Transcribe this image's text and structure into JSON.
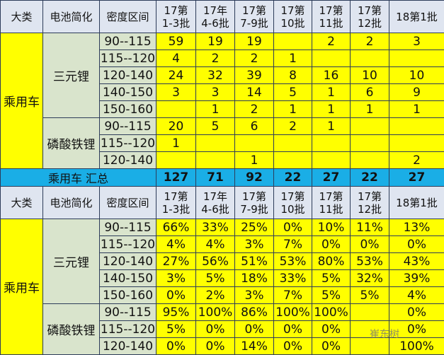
{
  "headers": {
    "category": "大类",
    "battery": "电池简化",
    "density": "密度区间",
    "batches": [
      [
        "17第",
        "1-3批"
      ],
      [
        "17年",
        "4-6批"
      ],
      [
        "17第",
        "7-9批"
      ],
      [
        "17第",
        "10批"
      ],
      [
        "17第",
        "11批"
      ],
      [
        "17第",
        "12批"
      ],
      [
        "18第1批",
        ""
      ]
    ]
  },
  "category": "乘用车",
  "batteries": [
    "三元锂",
    "磷酸铁锂"
  ],
  "counts": [
    {
      "range": "90--115",
      "values": [
        "59",
        "19",
        "19",
        "",
        "2",
        "2",
        "3"
      ]
    },
    {
      "range": "115--120",
      "values": [
        "4",
        "2",
        "2",
        "1",
        "",
        "",
        ""
      ]
    },
    {
      "range": "120-140",
      "values": [
        "24",
        "32",
        "39",
        "8",
        "16",
        "10",
        "10"
      ]
    },
    {
      "range": "140-150",
      "values": [
        "3",
        "3",
        "14",
        "5",
        "1",
        "6",
        "9"
      ]
    },
    {
      "range": "150-160",
      "values": [
        "",
        "1",
        "2",
        "1",
        "1",
        "1",
        "1"
      ]
    },
    {
      "range": "90--115",
      "values": [
        "20",
        "5",
        "6",
        "2",
        "1",
        "",
        ""
      ]
    },
    {
      "range": "115--120",
      "values": [
        "1",
        "",
        "",
        "",
        "",
        "",
        ""
      ]
    },
    {
      "range": "120-140",
      "values": [
        "",
        "",
        "1",
        "",
        "",
        "",
        "2"
      ]
    }
  ],
  "summary": {
    "label": "乘用车 汇总",
    "values": [
      "127",
      "71",
      "92",
      "22",
      "27",
      "22",
      "27"
    ]
  },
  "shares": [
    {
      "range": "90--115",
      "values": [
        "66%",
        "33%",
        "25%",
        "0%",
        "10%",
        "11%",
        "13%"
      ]
    },
    {
      "range": "115--120",
      "values": [
        "4%",
        "4%",
        "3%",
        "7%",
        "0%",
        "0%",
        "0%"
      ]
    },
    {
      "range": "120-140",
      "values": [
        "27%",
        "56%",
        "51%",
        "53%",
        "80%",
        "53%",
        "43%"
      ]
    },
    {
      "range": "140-150",
      "values": [
        "3%",
        "5%",
        "18%",
        "33%",
        "5%",
        "32%",
        "39%"
      ]
    },
    {
      "range": "150-160",
      "values": [
        "0%",
        "2%",
        "3%",
        "7%",
        "5%",
        "5%",
        "4%"
      ]
    },
    {
      "range": "90--115",
      "values": [
        "95%",
        "100%",
        "86%",
        "100%",
        "100%",
        "",
        "0%"
      ]
    },
    {
      "range": "115--120",
      "values": [
        "5%",
        "0%",
        "0%",
        "0%",
        "0%",
        "",
        "0%"
      ]
    },
    {
      "range": "120-140",
      "values": [
        "0%",
        "0%",
        "14%",
        "0%",
        "0%",
        "",
        "100%"
      ]
    }
  ],
  "watermark": "崔东树",
  "colors": {
    "header": "#dfe5f0",
    "yellow": "#ffff00",
    "green": "#d9e4cc",
    "summary": "#1aaee6"
  }
}
